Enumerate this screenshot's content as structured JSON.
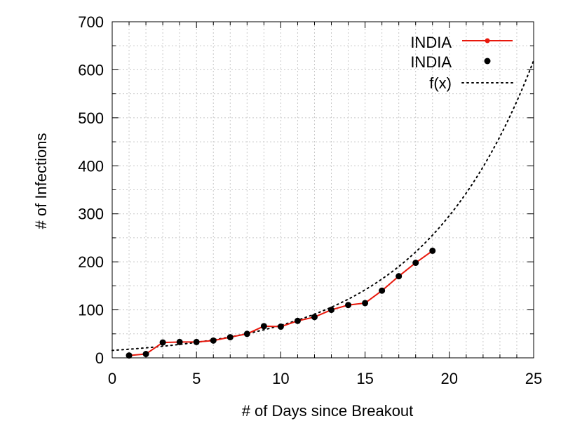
{
  "colors": {
    "line": "#e8180c",
    "marker": "#000000",
    "fit": "#000000",
    "grid": "#c8c8c8",
    "axis": "#000000",
    "background": "#ffffff"
  },
  "chart_data": {
    "type": "line",
    "title": "",
    "xlabel": "# of Days since Breakout",
    "ylabel": "# of Infections",
    "xlim": [
      0,
      25
    ],
    "ylim": [
      0,
      700
    ],
    "x_ticks": [
      0,
      5,
      10,
      15,
      20,
      25
    ],
    "x_tick_labels": [
      "0",
      "5",
      "10",
      "15",
      "20",
      "25"
    ],
    "y_ticks": [
      0,
      100,
      200,
      300,
      400,
      500,
      600,
      700
    ],
    "y_tick_labels": [
      "0",
      "100",
      "200",
      "300",
      "400",
      "500",
      "600",
      "700"
    ],
    "grid": true,
    "legend_position": "top-right",
    "series": [
      {
        "name": "INDIA",
        "style": "linespoints",
        "color": "#e8180c",
        "x": [
          1,
          2,
          3,
          4,
          5,
          6,
          7,
          8,
          9,
          10,
          11,
          12,
          13,
          14,
          15,
          16,
          17,
          18,
          19
        ],
        "y": [
          5,
          8,
          32,
          33,
          33,
          36,
          43,
          50,
          66,
          65,
          77,
          85,
          100,
          110,
          114,
          140,
          170,
          198,
          223
        ]
      },
      {
        "name": "INDIA",
        "style": "points",
        "color": "#000000",
        "x": [
          1,
          2,
          3,
          4,
          5,
          6,
          7,
          8,
          9,
          10,
          11,
          12,
          13,
          14,
          15,
          16,
          17,
          18,
          19
        ],
        "y": [
          5,
          8,
          32,
          33,
          33,
          36,
          43,
          50,
          66,
          65,
          77,
          85,
          100,
          110,
          114,
          140,
          170,
          198,
          223
        ]
      },
      {
        "name": "f(x)",
        "style": "dotted",
        "color": "#000000",
        "function": {
          "form": "exponential",
          "a": 15.5,
          "b": 0.1475
        }
      }
    ],
    "legend": [
      {
        "label": "INDIA",
        "kind": "linespoints"
      },
      {
        "label": "INDIA",
        "kind": "points"
      },
      {
        "label": "f(x)",
        "kind": "dotted"
      }
    ]
  }
}
